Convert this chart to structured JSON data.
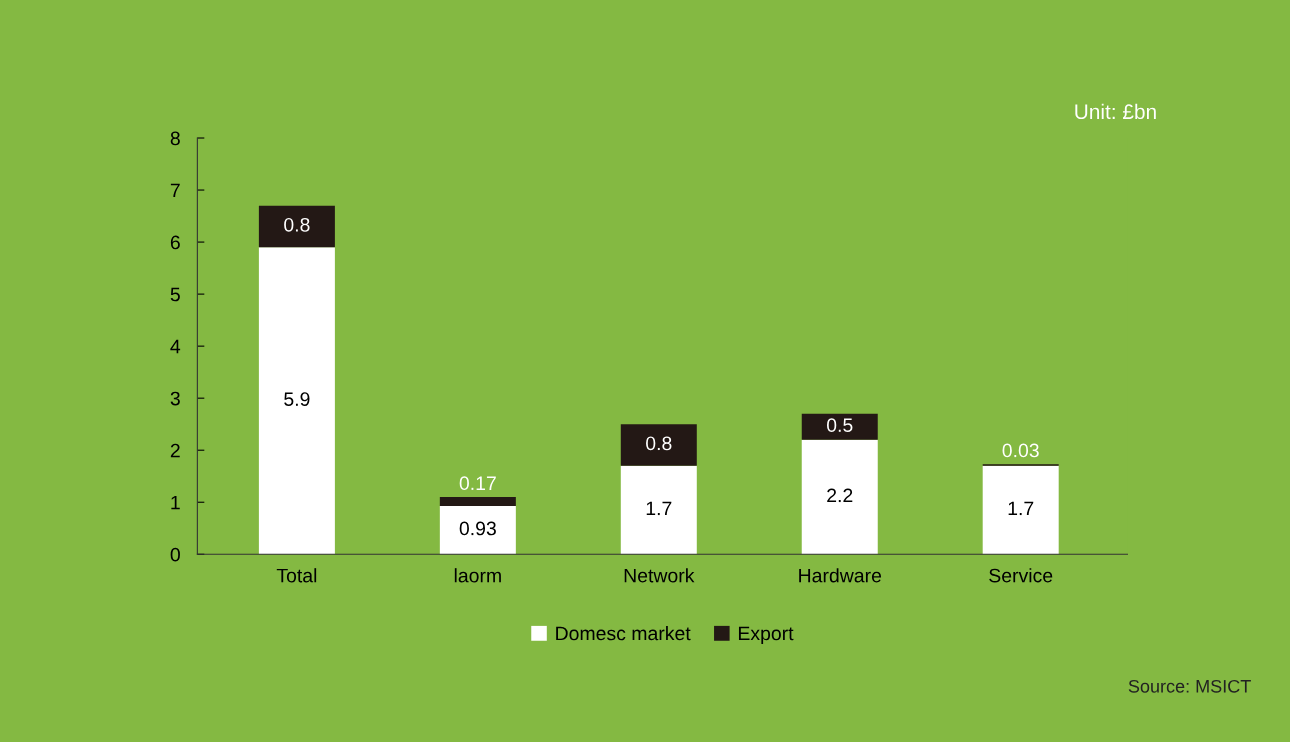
{
  "chart_data": {
    "type": "bar",
    "stacked": true,
    "categories": [
      "Total",
      "laorm",
      "Network",
      "Hardware",
      "Service"
    ],
    "series": [
      {
        "name": "Domesc market",
        "color": "#ffffff",
        "values": [
          5.9,
          0.93,
          1.7,
          2.2,
          1.7
        ]
      },
      {
        "name": "Export",
        "color": "#231815",
        "values": [
          0.8,
          0.17,
          0.8,
          0.5,
          0.03
        ]
      }
    ],
    "ylim": [
      0,
      8
    ],
    "yticks": [
      0,
      1,
      2,
      3,
      4,
      5,
      6,
      7,
      8
    ],
    "data_labels": true,
    "grid": false,
    "legend": "bottom",
    "annotations": [
      "Unit: £bn",
      "Source: MSICT"
    ]
  }
}
